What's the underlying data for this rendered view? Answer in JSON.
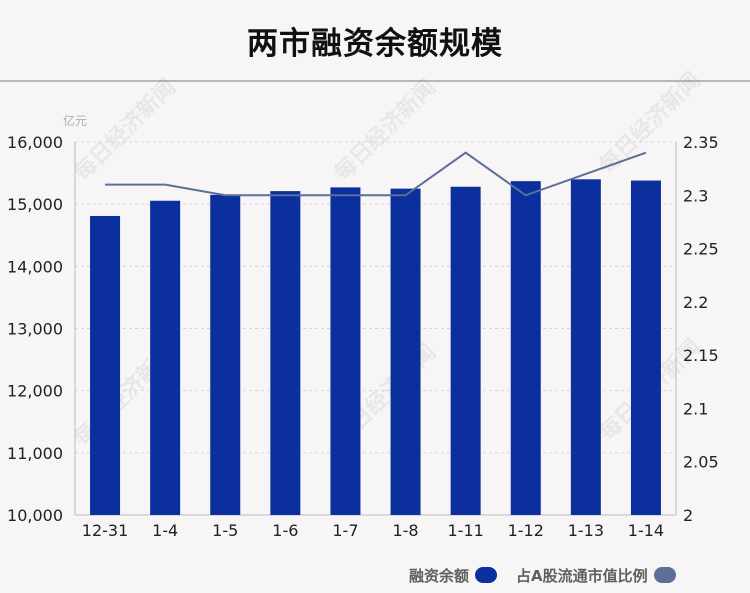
{
  "title": "两市融资余额规模",
  "colors": {
    "bar": "#0b2f9d",
    "line": "#5c6f99",
    "grid": "#d9d6da",
    "text": "#222222",
    "background": "#f8f5f7"
  },
  "legend": {
    "bar_label": "融资余额",
    "line_label": "占A股流通市值比例"
  },
  "watermark": "每日经济新闻",
  "chart_data": {
    "type": "bar",
    "title": "两市融资余额规模",
    "categories": [
      "12-31",
      "1-4",
      "1-5",
      "1-6",
      "1-7",
      "1-8",
      "1-11",
      "1-12",
      "1-13",
      "1-14"
    ],
    "ylabel_left": "亿元",
    "ylim_left": [
      10000,
      16000
    ],
    "yticks_left": [
      "10,000",
      "11,000",
      "12,000",
      "13,000",
      "14,000",
      "15,000",
      "16,000"
    ],
    "ylim_right": [
      2,
      2.35
    ],
    "yticks_right": [
      "2",
      "2.05",
      "2.1",
      "2.15",
      "2.2",
      "2.25",
      "2.3",
      "2.35"
    ],
    "grid": true,
    "legend_position": "bottom-right",
    "series": [
      {
        "name": "融资余额",
        "type": "bar",
        "axis": "left",
        "values": [
          14810,
          15055,
          15150,
          15210,
          15270,
          15250,
          15280,
          15370,
          15400,
          15380
        ]
      },
      {
        "name": "占A股流通市值比例",
        "type": "line",
        "axis": "right",
        "values": [
          2.31,
          2.31,
          2.3,
          2.3,
          2.3,
          2.3,
          2.34,
          2.3,
          2.32,
          2.34
        ]
      }
    ]
  }
}
